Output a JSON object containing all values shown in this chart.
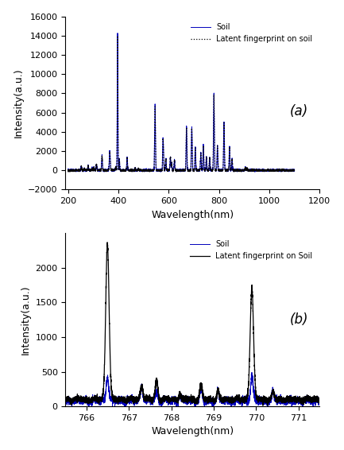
{
  "fig_width": 4.33,
  "fig_height": 5.66,
  "dpi": 100,
  "subplot_a": {
    "xlim": [
      190,
      1200
    ],
    "ylim": [
      -2000,
      16000
    ],
    "xticks": [
      200,
      400,
      600,
      800,
      1000,
      1200
    ],
    "yticks": [
      -2000,
      0,
      2000,
      4000,
      6000,
      8000,
      10000,
      12000,
      14000,
      16000
    ],
    "xlabel": "Wavelength(nm)",
    "ylabel": "Intensity(a.u.)",
    "label_a": "(a)",
    "legend_soil": "Soil",
    "legend_latent": "Latent fingerprint on soil",
    "soil_color": "#0000bb",
    "latent_color": "#000000",
    "soil_linestyle": "solid",
    "latent_linestyle": "dotted",
    "soil_linewidth": 0.7,
    "latent_linewidth": 0.9
  },
  "subplot_b": {
    "xlim": [
      765.5,
      771.5
    ],
    "ylim": [
      0,
      2500
    ],
    "xticks": [
      766,
      767,
      768,
      769,
      770,
      771
    ],
    "yticks": [
      0,
      500,
      1000,
      1500,
      2000
    ],
    "xlabel": "Wavelength(nm)",
    "ylabel": "Intensity(a.u.)",
    "label_b": "(b)",
    "legend_soil": "Soil",
    "legend_latent": "Latent fingerprint on Soil",
    "soil_color": "#0000bb",
    "latent_color": "#000000",
    "soil_linestyle": "solid",
    "latent_linestyle": "solid",
    "soil_linewidth": 0.7,
    "latent_linewidth": 0.9
  }
}
